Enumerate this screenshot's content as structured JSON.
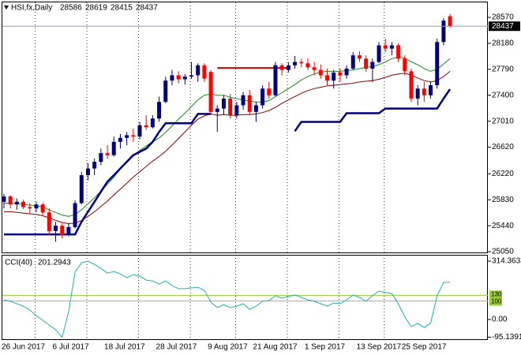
{
  "chart_data": [
    {
      "type": "candlestick",
      "title": "HSI,fx,Daily",
      "categories": [
        "26 Jun 2017",
        null,
        null,
        null,
        null,
        null,
        null,
        null,
        "6 Jul 2017",
        null,
        null,
        null,
        null,
        null,
        null,
        null,
        "18 Jul 2017",
        null,
        null,
        null,
        null,
        null,
        null,
        null,
        "28 Jul 2017",
        null,
        null,
        null,
        null,
        null,
        null,
        null,
        "9 Aug 2017",
        null,
        null,
        null,
        null,
        null,
        null,
        "21 Aug 2017",
        null,
        null,
        null,
        null,
        null,
        null,
        null,
        "1 Sep 2017",
        null,
        null,
        null,
        null,
        null,
        null,
        null,
        "13 Sep 2017",
        null,
        null,
        null,
        null,
        null,
        null,
        "25 Sep 2017",
        null,
        null,
        null,
        null,
        null,
        null,
        null
      ],
      "open": [
        25800,
        25880,
        25760,
        25800,
        25720,
        25700,
        25760,
        25640,
        25360,
        25440,
        25300,
        25420,
        25780,
        26200,
        26300,
        26400,
        26530,
        26500,
        26700,
        26760,
        26800,
        26780,
        26950,
        26920,
        27050,
        27300,
        27620,
        27700,
        27640,
        27680,
        27700,
        27850,
        27750,
        27150,
        27200,
        27350,
        27100,
        27250,
        27400,
        27150,
        27250,
        27500,
        27400,
        27850,
        27780,
        27850,
        27900,
        27880,
        27820,
        27780,
        27700,
        27620,
        27740,
        27700,
        27800,
        28000,
        27950,
        27800,
        27900,
        28150,
        28100,
        28150,
        27950,
        27760,
        27350,
        27500,
        27400,
        27550,
        28200,
        28586
      ],
      "high": [
        25920,
        25900,
        25850,
        25830,
        25780,
        25800,
        25790,
        25700,
        25500,
        25480,
        25480,
        25820,
        26250,
        26380,
        26450,
        26600,
        26650,
        26780,
        26820,
        26850,
        26900,
        27000,
        27100,
        27100,
        27380,
        27680,
        27780,
        27760,
        27720,
        27900,
        27880,
        27880,
        27780,
        27250,
        27400,
        27420,
        27300,
        27450,
        27480,
        27300,
        27550,
        27600,
        27900,
        27880,
        27900,
        27990,
        27950,
        27950,
        27900,
        27860,
        27800,
        27780,
        27800,
        27850,
        28050,
        28060,
        28000,
        27950,
        28200,
        28250,
        28200,
        28180,
        28000,
        27800,
        27550,
        27600,
        27600,
        28250,
        28560,
        28619
      ],
      "low": [
        25700,
        25700,
        25680,
        25690,
        25620,
        25640,
        25600,
        25300,
        25200,
        25250,
        25280,
        25400,
        25760,
        26120,
        26200,
        26350,
        26450,
        26480,
        26600,
        26650,
        26700,
        26740,
        26880,
        26900,
        27000,
        27280,
        27550,
        27580,
        27560,
        27650,
        27600,
        27600,
        27100,
        26850,
        27100,
        27050,
        27050,
        27180,
        27100,
        27000,
        27200,
        27350,
        27380,
        27700,
        27740,
        27800,
        27820,
        27780,
        27700,
        27650,
        27550,
        27500,
        27600,
        27650,
        27780,
        27900,
        27750,
        27600,
        27880,
        28050,
        28000,
        27900,
        27700,
        27300,
        27250,
        27300,
        27350,
        27500,
        28150,
        28415
      ],
      "close": [
        25880,
        25760,
        25800,
        25720,
        25700,
        25760,
        25640,
        25360,
        25440,
        25300,
        25420,
        25780,
        26200,
        26300,
        26400,
        26530,
        26500,
        26700,
        26760,
        26800,
        26780,
        26950,
        26920,
        27050,
        27300,
        27620,
        27700,
        27640,
        27680,
        27700,
        27850,
        27650,
        27150,
        27200,
        27350,
        27100,
        27250,
        27400,
        27150,
        27250,
        27500,
        27400,
        27850,
        27780,
        27850,
        27900,
        27880,
        27820,
        27780,
        27700,
        27620,
        27740,
        27700,
        27800,
        28000,
        27950,
        27800,
        27900,
        28150,
        28100,
        28150,
        27950,
        27760,
        27350,
        27500,
        27400,
        27550,
        28200,
        28520,
        28437
      ],
      "up_color": "#000080",
      "down_color": "#ff0000",
      "series": [
        {
          "color": "#1e8c1e",
          "values": [
            25780,
            25780,
            25770,
            25760,
            25750,
            25740,
            25720,
            25680,
            25640,
            25600,
            25580,
            25610,
            25680,
            25770,
            25860,
            25960,
            26060,
            26170,
            26290,
            26400,
            26500,
            26570,
            26640,
            26700,
            26760,
            26840,
            26940,
            27040,
            27130,
            27230,
            27330,
            27400,
            27420,
            27400,
            27400,
            27370,
            27350,
            27330,
            27310,
            27300,
            27300,
            27320,
            27380,
            27440,
            27500,
            27560,
            27630,
            27680,
            27720,
            27750,
            27760,
            27760,
            27760,
            27770,
            27780,
            27800,
            27820,
            27830,
            27860,
            27900,
            27950,
            27970,
            27960,
            27900,
            27860,
            27800,
            27760,
            27790,
            27870,
            27950
          ]
        },
        {
          "color": "#8b0000",
          "values": [
            25650,
            25650,
            25640,
            25630,
            25620,
            25610,
            25590,
            25560,
            25520,
            25490,
            25470,
            25480,
            25520,
            25580,
            25650,
            25730,
            25810,
            25900,
            25990,
            26080,
            26170,
            26250,
            26330,
            26410,
            26480,
            26560,
            26650,
            26750,
            26850,
            26950,
            27040,
            27090,
            27120,
            27100,
            27110,
            27100,
            27100,
            27110,
            27110,
            27120,
            27140,
            27170,
            27220,
            27280,
            27330,
            27380,
            27430,
            27470,
            27500,
            27520,
            27540,
            27550,
            27560,
            27570,
            27580,
            27600,
            27610,
            27620,
            27640,
            27670,
            27700,
            27720,
            27730,
            27700,
            27660,
            27620,
            27600,
            27620,
            27680,
            27760
          ]
        },
        {
          "color": "#000080",
          "width": 2.5,
          "values": [
            25310,
            25310,
            25310,
            25310,
            25310,
            25310,
            25310,
            25310,
            25310,
            25310,
            25310,
            25310,
            25500,
            25650,
            25800,
            25950,
            26100,
            26200,
            26300,
            26400,
            26500,
            26550,
            26600,
            26700,
            26850,
            26980,
            26980,
            26980,
            26980,
            26980,
            27120,
            27120,
            27120,
            null,
            null,
            null,
            null,
            null,
            null,
            null,
            null,
            null,
            null,
            null,
            null,
            26860,
            27000,
            27000,
            27000,
            27000,
            27000,
            27000,
            27000,
            27130,
            27130,
            27130,
            27130,
            27130,
            27130,
            27200,
            27200,
            27200,
            27200,
            27200,
            27200,
            27200,
            27200,
            27200,
            27350,
            27490
          ]
        }
      ],
      "levels": [
        {
          "value": 27810,
          "from": 33,
          "to": 44,
          "color": "#d00000"
        }
      ],
      "bid_line_color": "#8c9bb4",
      "ylim": [
        25027,
        28807
      ],
      "yticks": [
        28570,
        28180,
        27790,
        27400,
        27010,
        26620,
        26220,
        25830,
        25440,
        25050
      ]
    },
    {
      "type": "line",
      "title": "CCI(40)",
      "color": "#20b2aa",
      "values": [
        106,
        98,
        85,
        72,
        51,
        21,
        -4,
        -30,
        -55,
        -95.1391,
        42,
        255,
        306,
        314.3633,
        297,
        276,
        250,
        259,
        246,
        225,
        242,
        234,
        212,
        208,
        191,
        208,
        183,
        166,
        166,
        170,
        174,
        157,
        94,
        64,
        81,
        64,
        72,
        85,
        55,
        72,
        98,
        102,
        128,
        115,
        123,
        132,
        119,
        106,
        98,
        85,
        72,
        89,
        85,
        106,
        132,
        119,
        98,
        128,
        153,
        145,
        140,
        85,
        13,
        -38,
        -21,
        -43,
        -21,
        128,
        200,
        201.2943
      ],
      "levels": [
        130,
        100
      ],
      "level_color": "#9acd32",
      "ylim": [
        -106.25,
        344.25
      ],
      "yticks": [
        314.3633,
        {
          "value": 0,
          "label": "0.00"
        },
        -95.1391
      ]
    }
  ]
}
